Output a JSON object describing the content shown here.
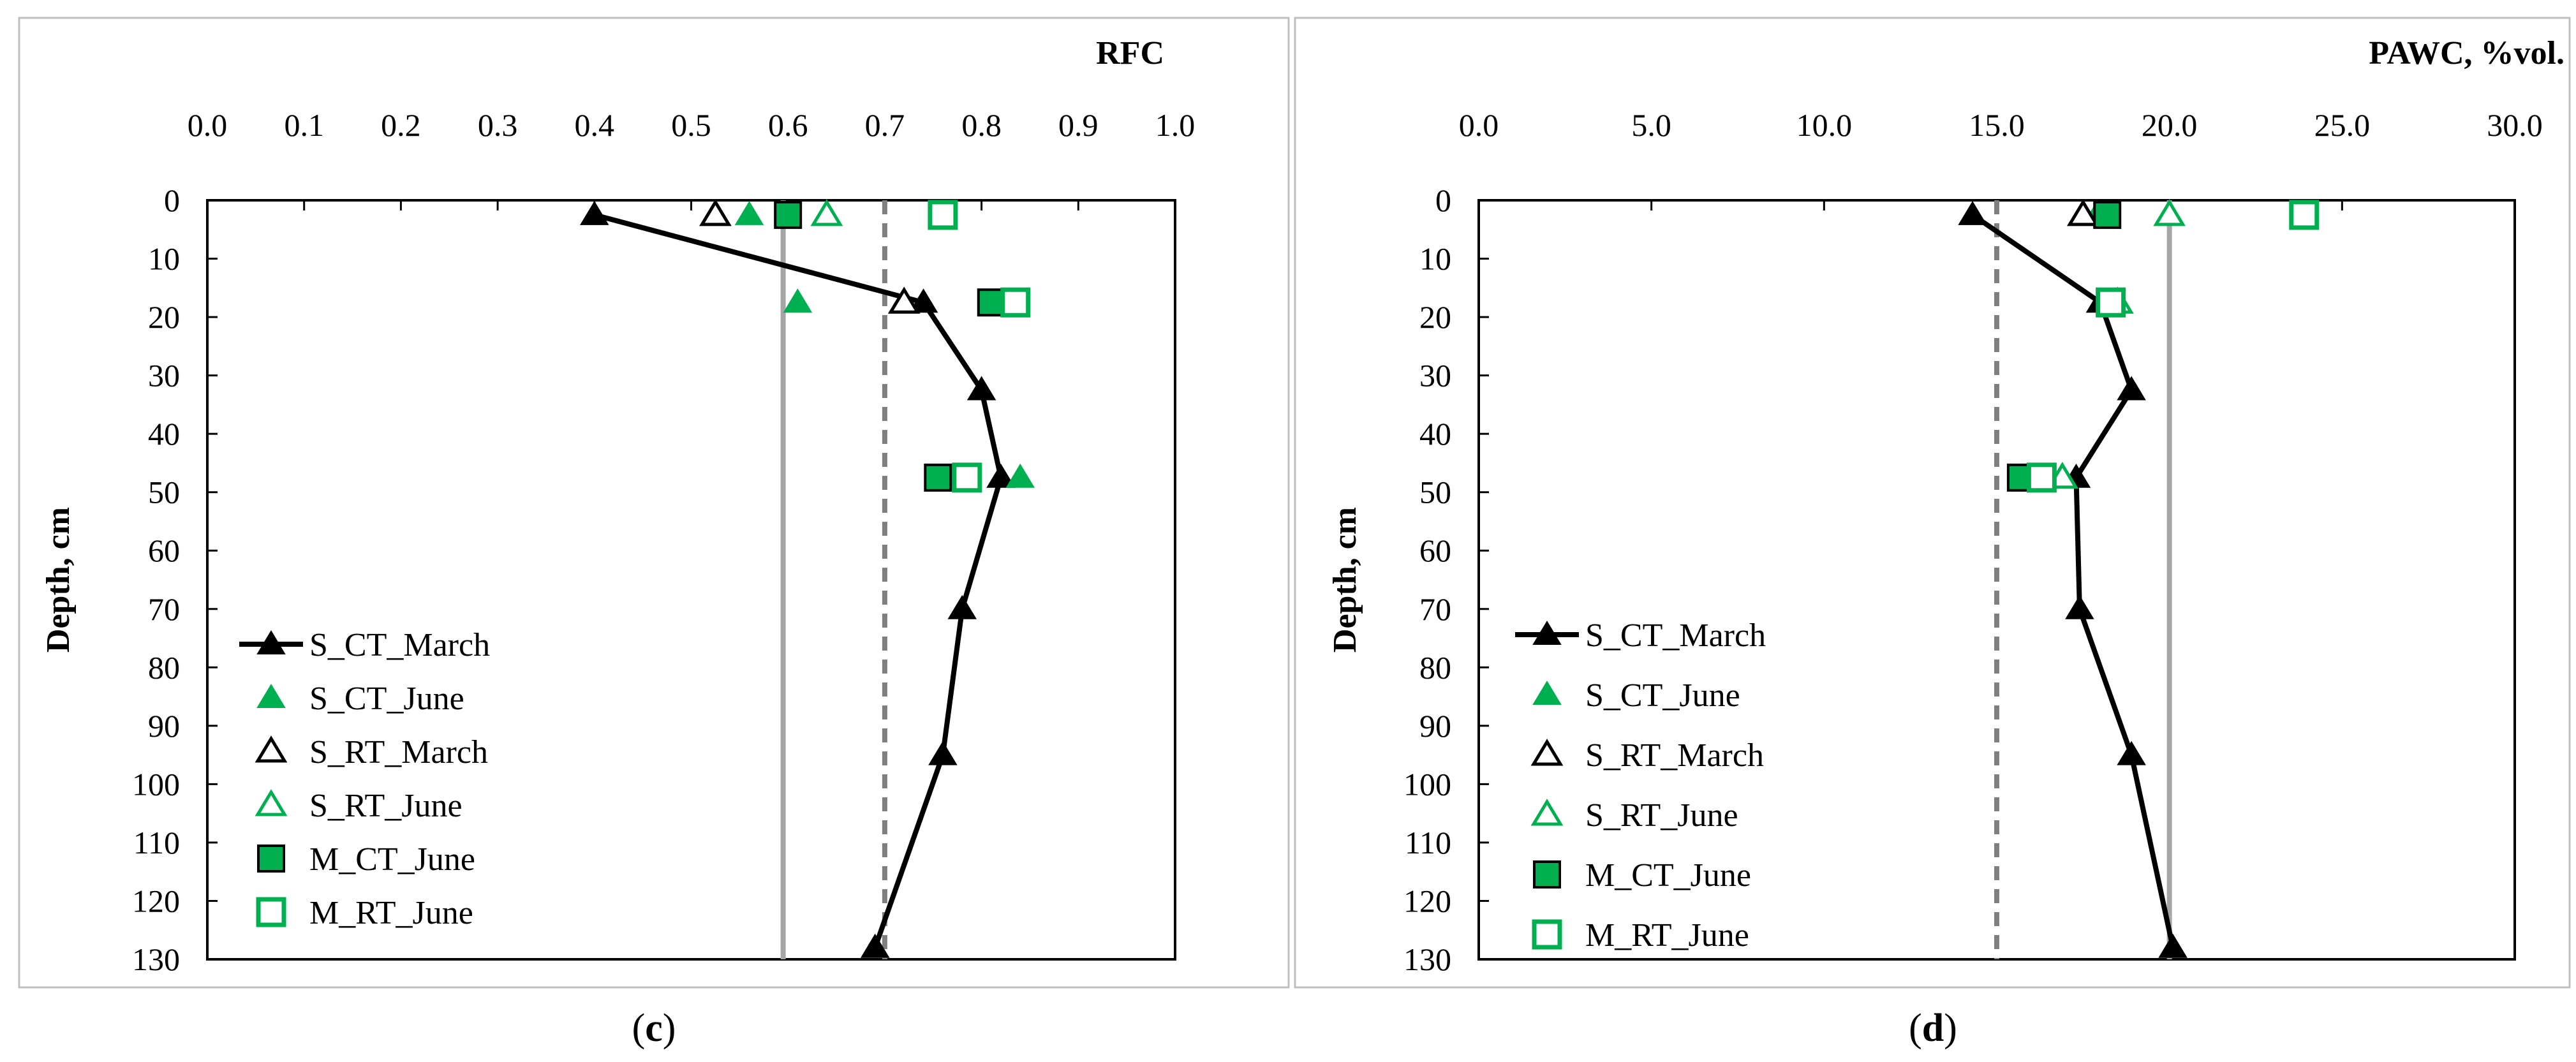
{
  "chart_data": [
    {
      "type": "scatter",
      "panel_label": "c",
      "x_axis_title": "RFC",
      "y_axis_title": "Depth, cm",
      "xlim": [
        0.0,
        1.0
      ],
      "xticks": [
        "0.0",
        "0.1",
        "0.2",
        "0.3",
        "0.4",
        "0.5",
        "0.6",
        "0.7",
        "0.8",
        "0.9",
        "1.0"
      ],
      "xtick_values": [
        0.0,
        0.1,
        0.2,
        0.3,
        0.4,
        0.5,
        0.6,
        0.7,
        0.8,
        0.9,
        1.0
      ],
      "ylim": [
        0,
        130
      ],
      "y_inverted": true,
      "yticks": [
        "0",
        "10",
        "20",
        "30",
        "40",
        "50",
        "60",
        "70",
        "80",
        "90",
        "100",
        "110",
        "120",
        "130"
      ],
      "ytick_values": [
        0,
        10,
        20,
        30,
        40,
        50,
        60,
        70,
        80,
        90,
        100,
        110,
        120,
        130
      ],
      "x_axis_position": "top",
      "legend_position": "bottom-left",
      "reference_lines": [
        {
          "style": "solid",
          "color": "#a6a6a6",
          "x": 0.595
        },
        {
          "style": "dashed",
          "color": "#7f7f7f",
          "x": 0.7
        }
      ],
      "series": [
        {
          "name": "S_CT_March",
          "marker": "triangle-filled",
          "color": "#000000",
          "line": true,
          "points": [
            [
              0.4,
              2.5
            ],
            [
              0.74,
              17.5
            ],
            [
              0.8,
              32.5
            ],
            [
              0.82,
              47.5
            ],
            [
              0.78,
              70
            ],
            [
              0.76,
              95
            ],
            [
              0.69,
              128
            ]
          ]
        },
        {
          "name": "S_CT_June",
          "marker": "triangle-filled",
          "color": "#00b050",
          "line": false,
          "points": [
            [
              0.56,
              2.5
            ],
            [
              0.61,
              17.5
            ],
            [
              0.84,
              47.5
            ]
          ]
        },
        {
          "name": "S_RT_March",
          "marker": "triangle-open",
          "color": "#000000",
          "line": false,
          "points": [
            [
              0.525,
              2.5
            ],
            [
              0.72,
              17.5
            ]
          ]
        },
        {
          "name": "S_RT_June",
          "marker": "triangle-open",
          "color": "#00b050",
          "line": false,
          "points": [
            [
              0.64,
              2.5
            ]
          ]
        },
        {
          "name": "M_CT_June",
          "marker": "square-filled",
          "color": "#00b050",
          "line": false,
          "points": [
            [
              0.6,
              2.5
            ],
            [
              0.81,
              17.5
            ],
            [
              0.755,
              47.5
            ]
          ]
        },
        {
          "name": "M_RT_June",
          "marker": "square-open",
          "color": "#00b050",
          "line": false,
          "points": [
            [
              0.76,
              2.5
            ],
            [
              0.835,
              17.5
            ],
            [
              0.785,
              47.5
            ]
          ]
        }
      ]
    },
    {
      "type": "scatter",
      "panel_label": "d",
      "x_axis_title": "PAWC, %vol.",
      "y_axis_title": "Depth, cm",
      "xlim": [
        0.0,
        30.0
      ],
      "xticks": [
        "0.0",
        "5.0",
        "10.0",
        "15.0",
        "20.0",
        "25.0",
        "30.0"
      ],
      "xtick_values": [
        0,
        5,
        10,
        15,
        20,
        25,
        30
      ],
      "ylim": [
        0,
        130
      ],
      "y_inverted": true,
      "yticks": [
        "0",
        "10",
        "20",
        "30",
        "40",
        "50",
        "60",
        "70",
        "80",
        "90",
        "100",
        "110",
        "120",
        "130"
      ],
      "ytick_values": [
        0,
        10,
        20,
        30,
        40,
        50,
        60,
        70,
        80,
        90,
        100,
        110,
        120,
        130
      ],
      "x_axis_position": "top",
      "legend_position": "bottom-left",
      "reference_lines": [
        {
          "style": "dashed",
          "color": "#7f7f7f",
          "x": 15.0
        },
        {
          "style": "solid",
          "color": "#a6a6a6",
          "x": 20.0
        }
      ],
      "series": [
        {
          "name": "S_CT_March",
          "marker": "triangle-filled",
          "color": "#000000",
          "line": true,
          "points": [
            [
              14.3,
              2.5
            ],
            [
              18.0,
              17.5
            ],
            [
              18.9,
              32.5
            ],
            [
              17.3,
              47.5
            ],
            [
              17.4,
              70
            ],
            [
              18.9,
              95
            ],
            [
              20.1,
              128
            ]
          ]
        },
        {
          "name": "S_CT_June",
          "marker": "triangle-filled",
          "color": "#00b050",
          "line": false,
          "points": [
            [
              17.9,
              2.5
            ]
          ]
        },
        {
          "name": "S_RT_March",
          "marker": "triangle-open",
          "color": "#000000",
          "line": false,
          "points": [
            [
              17.5,
              2.5
            ]
          ]
        },
        {
          "name": "S_RT_June",
          "marker": "triangle-open",
          "color": "#00b050",
          "line": false,
          "points": [
            [
              20.0,
              2.5
            ],
            [
              18.5,
              17.5
            ],
            [
              16.9,
              47.5
            ]
          ]
        },
        {
          "name": "M_CT_June",
          "marker": "square-filled",
          "color": "#00b050",
          "line": false,
          "points": [
            [
              18.2,
              2.5
            ],
            [
              15.7,
              47.5
            ]
          ]
        },
        {
          "name": "M_RT_June",
          "marker": "square-open",
          "color": "#00b050",
          "line": false,
          "points": [
            [
              23.9,
              2.5
            ],
            [
              18.3,
              17.5
            ],
            [
              16.3,
              47.5
            ]
          ]
        }
      ]
    }
  ],
  "captions": {
    "c": {
      "open": "(",
      "letter": "c",
      "close": ")"
    },
    "d": {
      "open": "(",
      "letter": "d",
      "close": ")"
    }
  }
}
